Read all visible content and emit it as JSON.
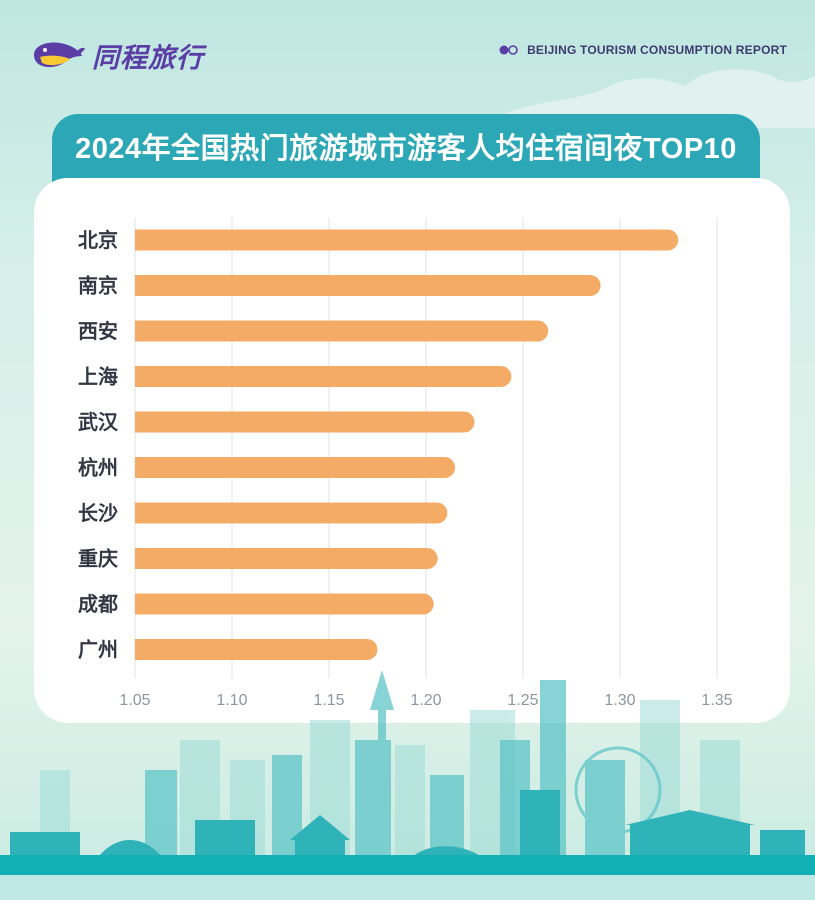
{
  "brand": {
    "logo_text": "同程旅行",
    "report_label": "BEIJING TOURISM CONSUMPTION REPORT",
    "colors": {
      "brand_purple": "#5a3ea6",
      "title_bar": "#2ba7b5",
      "bar": "#f4ab66",
      "logo_yellow": "#f7c934"
    }
  },
  "chart_data": {
    "type": "bar",
    "orientation": "horizontal",
    "title": "2024年全国热门旅游城市游客人均住宿间夜TOP10",
    "categories": [
      "北京",
      "南京",
      "西安",
      "上海",
      "武汉",
      "杭州",
      "长沙",
      "重庆",
      "成都",
      "广州"
    ],
    "values": [
      1.33,
      1.29,
      1.263,
      1.244,
      1.225,
      1.215,
      1.211,
      1.206,
      1.204,
      1.175
    ],
    "xlim": [
      1.05,
      1.35
    ],
    "xticks": [
      "1.05",
      "1.10",
      "1.15",
      "1.20",
      "1.25",
      "1.30",
      "1.35"
    ],
    "grid": true,
    "bar_color": "#f4ab66"
  }
}
